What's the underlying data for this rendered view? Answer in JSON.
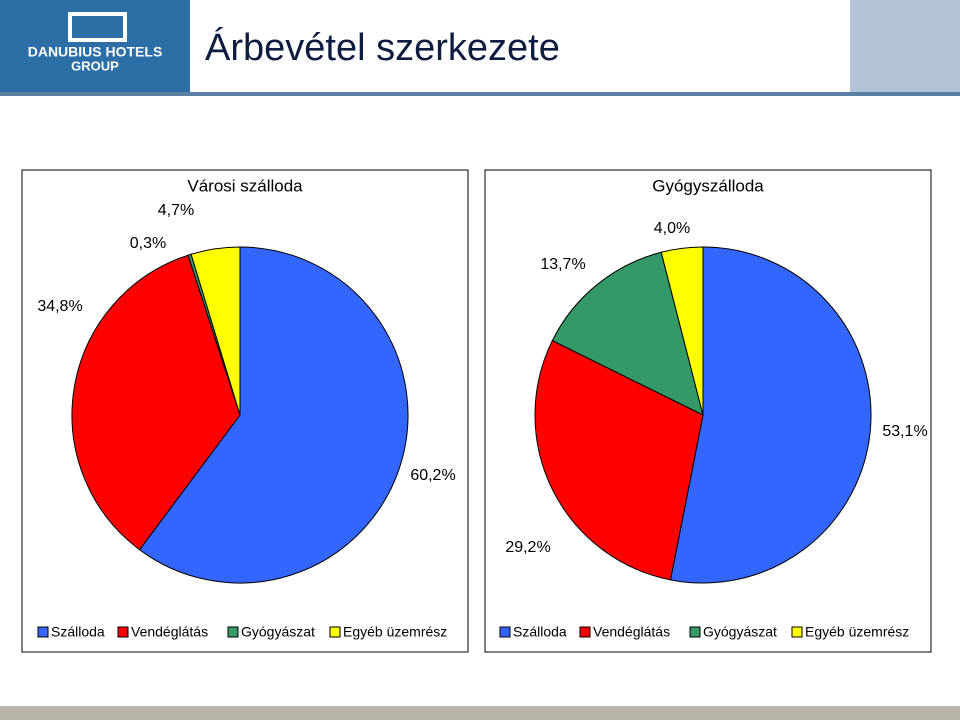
{
  "title": "Árbevétel szerkezete",
  "logo": [
    "DANUBIUS HOTELS",
    "GROUP"
  ],
  "chart_data": [
    {
      "type": "pie",
      "title": "Városi szálloda",
      "categories": [
        "Szálloda",
        "Vendéglátás",
        "Gyógyászat",
        "Egyéb üzemrész"
      ],
      "values": [
        60.2,
        34.8,
        0.3,
        4.7
      ],
      "value_labels": [
        "60,2%",
        "34,8%",
        "0,3%",
        "4,7%"
      ],
      "colors": [
        "#3366ff",
        "#ff0000",
        "#339966",
        "#ffff00"
      ]
    },
    {
      "type": "pie",
      "title": "Gyógyszálloda",
      "categories": [
        "Szálloda",
        "Vendéglátás",
        "Gyógyászat",
        "Egyéb üzemrész"
      ],
      "values": [
        53.1,
        29.2,
        13.7,
        4.0
      ],
      "value_labels": [
        "53,1%",
        "29,2%",
        "13,7%",
        "4,0%"
      ],
      "colors": [
        "#3366ff",
        "#ff0000",
        "#339966",
        "#ffff00"
      ]
    }
  ]
}
